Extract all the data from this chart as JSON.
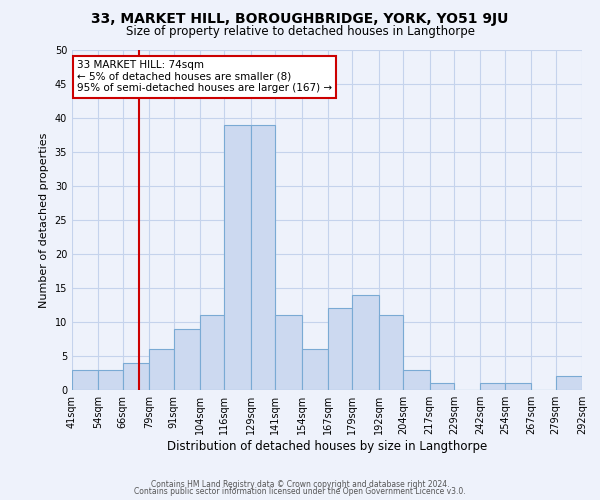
{
  "title": "33, MARKET HILL, BOROUGHBRIDGE, YORK, YO51 9JU",
  "subtitle": "Size of property relative to detached houses in Langthorpe",
  "xlabel": "Distribution of detached houses by size in Langthorpe",
  "ylabel": "Number of detached properties",
  "bin_edges": [
    41,
    54,
    66,
    79,
    91,
    104,
    116,
    129,
    141,
    154,
    167,
    179,
    192,
    204,
    217,
    229,
    242,
    254,
    267,
    279,
    292
  ],
  "bin_labels": [
    "41sqm",
    "54sqm",
    "66sqm",
    "79sqm",
    "91sqm",
    "104sqm",
    "116sqm",
    "129sqm",
    "141sqm",
    "154sqm",
    "167sqm",
    "179sqm",
    "192sqm",
    "204sqm",
    "217sqm",
    "229sqm",
    "242sqm",
    "254sqm",
    "267sqm",
    "279sqm",
    "292sqm"
  ],
  "counts": [
    3,
    3,
    4,
    6,
    9,
    11,
    39,
    39,
    11,
    6,
    12,
    14,
    11,
    3,
    1,
    0,
    1,
    1,
    0,
    2
  ],
  "bar_color": "#ccd9f0",
  "bar_edge_color": "#7aaad4",
  "vline_x": 74,
  "vline_color": "#cc0000",
  "annotation_text": "33 MARKET HILL: 74sqm\n← 5% of detached houses are smaller (8)\n95% of semi-detached houses are larger (167) →",
  "annotation_box_color": "white",
  "annotation_box_edge_color": "#cc0000",
  "ylim": [
    0,
    50
  ],
  "yticks": [
    0,
    5,
    10,
    15,
    20,
    25,
    30,
    35,
    40,
    45,
    50
  ],
  "footer_line1": "Contains HM Land Registry data © Crown copyright and database right 2024.",
  "footer_line2": "Contains public sector information licensed under the Open Government Licence v3.0.",
  "background_color": "#eef2fb",
  "grid_color": "#c5d3ec",
  "title_fontsize": 10,
  "subtitle_fontsize": 8.5,
  "ylabel_fontsize": 8,
  "xlabel_fontsize": 8.5,
  "tick_fontsize": 7,
  "footer_fontsize": 5.5
}
